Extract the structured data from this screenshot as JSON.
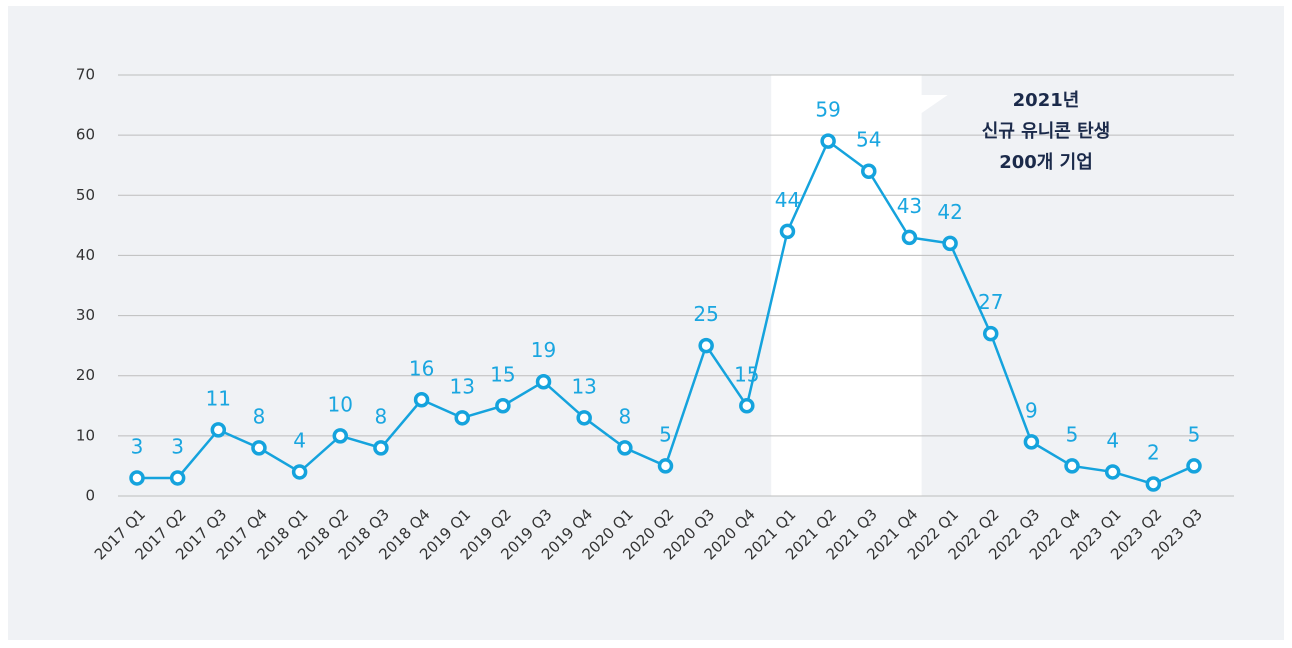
{
  "chart_data": {
    "type": "line",
    "categories": [
      "2017 Q1",
      "2017 Q2",
      "2017 Q3",
      "2017 Q4",
      "2018 Q1",
      "2018 Q2",
      "2018 Q3",
      "2018 Q4",
      "2019 Q1",
      "2019 Q2",
      "2019 Q3",
      "2019 Q4",
      "2020 Q1",
      "2020 Q2",
      "2020 Q3",
      "2020 Q4",
      "2021 Q1",
      "2021 Q2",
      "2021 Q3",
      "2021 Q4",
      "2022 Q1",
      "2022 Q2",
      "2022 Q3",
      "2022 Q4",
      "2023 Q1",
      "2023 Q2",
      "2023 Q3"
    ],
    "values": [
      3,
      3,
      11,
      8,
      4,
      10,
      8,
      16,
      13,
      15,
      19,
      13,
      8,
      5,
      25,
      15,
      44,
      59,
      54,
      43,
      42,
      27,
      9,
      5,
      4,
      2,
      5
    ],
    "color": "#15a3dd",
    "ylim": [
      0,
      70
    ],
    "yticks": [
      0,
      10,
      20,
      30,
      40,
      50,
      60,
      70
    ],
    "grid": true,
    "annotation": [
      "2021년",
      "신규 유니콘 탄생",
      "200개 기업"
    ]
  }
}
